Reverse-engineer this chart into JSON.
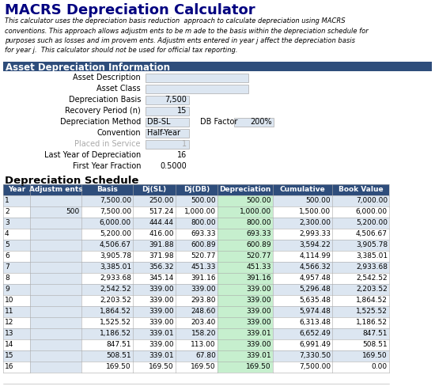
{
  "title": "MACRS Depreciation Calculator",
  "subtitle": "This calculator uses the depreciation basis reduction  approach to calculate depreciation using MACRS\nconventions. This approach allows adjustm ents to be m ade to the basis within the depreciation schedule for\npurposes such as losses and im provem ents. Adjustm ents entered in year j affect the depreciation basis\nfor year j.  This calculator should not be used for official tax reporting.",
  "section1_title": "Asset Depreciation Information",
  "fields": [
    [
      "Asset Description",
      ""
    ],
    [
      "Asset Class",
      ""
    ],
    [
      "Depreciation Basis",
      "7,500"
    ],
    [
      "Recovery Period (n)",
      "15"
    ],
    [
      "Depreciation Method",
      "DB-SL"
    ],
    [
      "Convention",
      "Half-Year"
    ],
    [
      "Placed in Service",
      "1"
    ],
    [
      "Last Year of Depreciation",
      "16"
    ],
    [
      "First Year Fraction",
      "0.5000"
    ]
  ],
  "db_factor_label": "DB Factor",
  "db_factor_value": "200%",
  "section2_title": "Depreciation Schedule",
  "table_headers": [
    "Year",
    "Adjustm ents",
    "Basis",
    "Dj(SL)",
    "Dj(DB)",
    "Depreciation",
    "Cumulative",
    "Book Value"
  ],
  "table_data": [
    [
      1,
      "",
      "7,500.00",
      "250.00",
      "500.00",
      "500.00",
      "500.00",
      "7,000.00"
    ],
    [
      2,
      "500",
      "7,500.00",
      "517.24",
      "1,000.00",
      "1,000.00",
      "1,500.00",
      "6,000.00"
    ],
    [
      3,
      "",
      "6,000.00",
      "444.44",
      "800.00",
      "800.00",
      "2,300.00",
      "5,200.00"
    ],
    [
      4,
      "",
      "5,200.00",
      "416.00",
      "693.33",
      "693.33",
      "2,993.33",
      "4,506.67"
    ],
    [
      5,
      "",
      "4,506.67",
      "391.88",
      "600.89",
      "600.89",
      "3,594.22",
      "3,905.78"
    ],
    [
      6,
      "",
      "3,905.78",
      "371.98",
      "520.77",
      "520.77",
      "4,114.99",
      "3,385.01"
    ],
    [
      7,
      "",
      "3,385.01",
      "356.32",
      "451.33",
      "451.33",
      "4,566.32",
      "2,933.68"
    ],
    [
      8,
      "",
      "2,933.68",
      "345.14",
      "391.16",
      "391.16",
      "4,957.48",
      "2,542.52"
    ],
    [
      9,
      "",
      "2,542.52",
      "339.00",
      "339.00",
      "339.00",
      "5,296.48",
      "2,203.52"
    ],
    [
      10,
      "",
      "2,203.52",
      "339.00",
      "293.80",
      "339.00",
      "5,635.48",
      "1,864.52"
    ],
    [
      11,
      "",
      "1,864.52",
      "339.00",
      "248.60",
      "339.00",
      "5,974.48",
      "1,525.52"
    ],
    [
      12,
      "",
      "1,525.52",
      "339.00",
      "203.40",
      "339.00",
      "6,313.48",
      "1,186.52"
    ],
    [
      13,
      "",
      "1,186.52",
      "339.01",
      "158.20",
      "339.01",
      "6,652.49",
      "847.51"
    ],
    [
      14,
      "",
      "847.51",
      "339.00",
      "113.00",
      "339.00",
      "6,991.49",
      "508.51"
    ],
    [
      15,
      "",
      "508.51",
      "339.01",
      "67.80",
      "339.01",
      "7,330.50",
      "169.50"
    ],
    [
      16,
      "",
      "169.50",
      "169.50",
      "169.50",
      "169.50",
      "7,500.00",
      "0.00"
    ]
  ],
  "section_header_bg": "#2e4d7b",
  "table_header_bg": "#2e4d7b",
  "table_header_fg": "#ffffff",
  "row_alt_bg": "#dce6f1",
  "row_even_bg": "#ffffff",
  "depreciation_col_bg": "#c6efce",
  "input_box_bg": "#dce6f1",
  "placed_in_service_color": "#aaaaaa",
  "bg_color": "#ffffff",
  "title_color": "#000080",
  "title_fontsize": 13,
  "subtitle_fontsize": 6.0,
  "table_fontsize": 6.5,
  "field_fontsize": 7.0,
  "section_title_fontsize": 8.5
}
